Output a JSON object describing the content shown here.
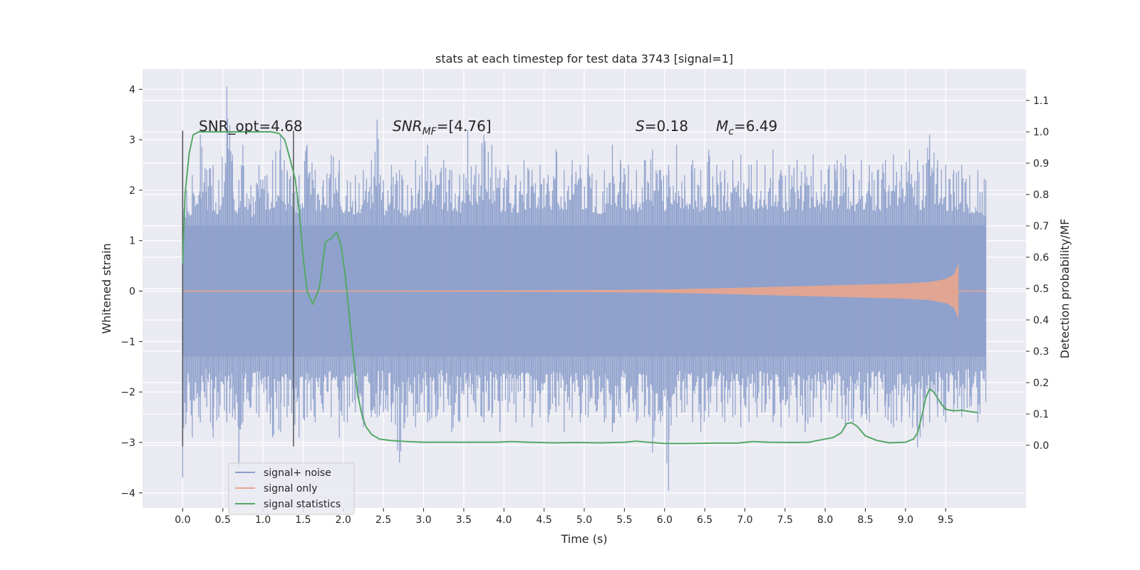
{
  "chart_data": {
    "type": "line",
    "title": "stats at each timestep for test data 3743 [signal=1]",
    "xlabel": "Time (s)",
    "ylabel": "Whitened strain",
    "y2label": "Detection probability/MF",
    "xlim": [
      -0.5,
      10.5
    ],
    "ylim": [
      -4.3,
      4.4
    ],
    "y2lim": [
      -0.2,
      1.2
    ],
    "x_ticks": [
      "0.0",
      "0.5",
      "1.0",
      "1.5",
      "2.0",
      "2.5",
      "3.0",
      "3.5",
      "4.0",
      "4.5",
      "5.0",
      "5.5",
      "6.0",
      "6.5",
      "7.0",
      "7.5",
      "8.0",
      "8.5",
      "9.0",
      "9.5"
    ],
    "y_ticks": [
      "4",
      "3",
      "2",
      "1",
      "0",
      "−1",
      "−2",
      "−3",
      "−4"
    ],
    "y2_ticks": [
      "1.1",
      "1.0",
      "0.9",
      "0.8",
      "0.7",
      "0.6",
      "0.5",
      "0.4",
      "0.3",
      "0.2",
      "0.1",
      "0.0"
    ],
    "grid": true,
    "legend_position": "bottom-left",
    "annotations": {
      "snr_opt": "SNR_opt=4.68",
      "snr_mf_base": "SNR",
      "snr_mf_sub": "MF",
      "snr_mf_rest": "=[4.76]",
      "s_var": "S",
      "s_rest": "=0.18",
      "mc_var": "M",
      "mc_sub": "c",
      "mc_rest": "=6.49"
    },
    "vertical_markers": [
      0.0,
      1.38
    ],
    "series": [
      {
        "name": "signal+ noise",
        "color": "#8da0cb",
        "x_range": [
          0.0,
          10.0
        ],
        "envelope_1sigma": 1.3,
        "peak_x": [
          0.0,
          0.05,
          0.12,
          0.22,
          0.3,
          0.38,
          0.45,
          0.55,
          0.62,
          0.7,
          0.75,
          0.85,
          0.95,
          1.05,
          1.12,
          1.22,
          1.3,
          1.38,
          1.45,
          1.55,
          1.65,
          1.75,
          1.85,
          1.95,
          2.05,
          2.15,
          2.25,
          2.35,
          2.42,
          2.5,
          2.6,
          2.7,
          2.8,
          2.9,
          2.95,
          3.05,
          3.15,
          3.25,
          3.35,
          3.45,
          3.55,
          3.65,
          3.75,
          3.85,
          3.95,
          4.05,
          4.15,
          4.25,
          4.35,
          4.45,
          4.55,
          4.65,
          4.75,
          4.85,
          4.95,
          5.05,
          5.15,
          5.25,
          5.35,
          5.45,
          5.55,
          5.65,
          5.75,
          5.85,
          5.95,
          6.05,
          6.15,
          6.25,
          6.35,
          6.45,
          6.55,
          6.65,
          6.75,
          6.85,
          6.95,
          7.05,
          7.15,
          7.25,
          7.35,
          7.45,
          7.55,
          7.65,
          7.75,
          7.85,
          7.95,
          8.05,
          8.15,
          8.25,
          8.35,
          8.45,
          8.55,
          8.65,
          8.75,
          8.85,
          8.95,
          9.05,
          9.15,
          9.22,
          9.3,
          9.4,
          9.5,
          9.6,
          9.7,
          9.8,
          9.9,
          10.0
        ],
        "peak_hi": [
          2.6,
          2.0,
          2.3,
          3.1,
          2.4,
          2.5,
          2.2,
          4.05,
          2.7,
          2.2,
          2.9,
          2.1,
          2.5,
          2.3,
          2.6,
          3.1,
          2.4,
          2.5,
          2.3,
          2.9,
          2.4,
          2.2,
          2.7,
          2.6,
          2.2,
          2.3,
          2.4,
          2.6,
          3.4,
          2.2,
          2.5,
          2.4,
          2.1,
          2.6,
          2.3,
          2.9,
          2.3,
          2.6,
          2.4,
          2.3,
          3.2,
          2.5,
          3.1,
          2.9,
          2.4,
          2.5,
          2.3,
          2.6,
          2.4,
          2.5,
          2.3,
          2.8,
          2.4,
          2.6,
          2.5,
          2.7,
          2.2,
          2.4,
          2.9,
          2.6,
          2.5,
          2.4,
          2.6,
          2.8,
          2.4,
          2.5,
          2.9,
          2.3,
          2.6,
          2.4,
          2.8,
          2.5,
          2.4,
          2.6,
          2.7,
          2.5,
          2.6,
          2.5,
          2.8,
          2.4,
          2.5,
          2.6,
          2.5,
          2.7,
          2.4,
          2.5,
          2.6,
          2.7,
          2.4,
          2.6,
          2.5,
          2.4,
          2.6,
          2.7,
          2.5,
          2.8,
          2.6,
          2.5,
          3.1,
          2.6,
          2.5,
          2.4,
          2.5,
          2.3,
          2.4,
          2.2
        ],
        "peak_lo": [
          -3.7,
          -2.4,
          -2.9,
          -2.6,
          -2.3,
          -2.9,
          -2.5,
          -2.6,
          -2.5,
          -3.5,
          -2.6,
          -2.3,
          -2.5,
          -2.4,
          -2.9,
          -2.8,
          -2.5,
          -2.6,
          -2.9,
          -2.5,
          -2.6,
          -2.4,
          -2.5,
          -2.9,
          -2.6,
          -2.4,
          -2.7,
          -2.5,
          -2.5,
          -2.4,
          -2.6,
          -3.4,
          -2.5,
          -2.7,
          -2.4,
          -2.6,
          -2.5,
          -2.4,
          -2.8,
          -2.6,
          -2.5,
          -2.4,
          -2.6,
          -2.5,
          -2.8,
          -2.4,
          -2.6,
          -2.5,
          -2.7,
          -2.5,
          -2.6,
          -2.4,
          -2.8,
          -2.5,
          -2.6,
          -2.5,
          -2.4,
          -2.6,
          -2.8,
          -2.5,
          -2.4,
          -2.6,
          -2.5,
          -3.2,
          -2.6,
          -3.95,
          -2.5,
          -2.4,
          -2.6,
          -2.8,
          -2.5,
          -2.4,
          -2.6,
          -2.5,
          -2.7,
          -2.6,
          -2.5,
          -2.4,
          -2.6,
          -2.7,
          -2.5,
          -2.6,
          -2.8,
          -2.5,
          -2.6,
          -2.4,
          -2.5,
          -2.7,
          -2.6,
          -2.5,
          -2.6,
          -2.4,
          -2.5,
          -2.7,
          -2.6,
          -2.5,
          -3.1,
          -2.7,
          -2.6,
          -2.5,
          -2.6,
          -2.4,
          -2.5,
          -2.3,
          -2.6,
          -2.2
        ]
      },
      {
        "name": "signal only",
        "color": "#e5a58f",
        "x": [
          0.0,
          1.0,
          2.0,
          3.0,
          4.0,
          5.0,
          5.5,
          6.0,
          6.5,
          7.0,
          7.5,
          8.0,
          8.5,
          9.0,
          9.3,
          9.5,
          9.6,
          9.66
        ],
        "amplitude": [
          0.01,
          0.01,
          0.01,
          0.012,
          0.015,
          0.02,
          0.025,
          0.035,
          0.05,
          0.07,
          0.09,
          0.11,
          0.13,
          0.15,
          0.18,
          0.24,
          0.32,
          0.55
        ]
      },
      {
        "name": "signal statistics",
        "color": "#55a868",
        "axis": "right",
        "x": [
          0.0,
          0.03,
          0.08,
          0.13,
          0.2,
          0.3,
          0.5,
          0.7,
          0.9,
          1.1,
          1.2,
          1.27,
          1.33,
          1.4,
          1.45,
          1.5,
          1.55,
          1.62,
          1.7,
          1.78,
          1.85,
          1.92,
          1.97,
          2.02,
          2.08,
          2.13,
          2.18,
          2.23,
          2.28,
          2.35,
          2.45,
          2.6,
          2.8,
          3.0,
          3.3,
          3.6,
          3.9,
          4.1,
          4.3,
          4.6,
          4.9,
          5.2,
          5.5,
          5.65,
          5.8,
          6.0,
          6.3,
          6.6,
          6.9,
          7.1,
          7.3,
          7.6,
          7.8,
          8.0,
          8.1,
          8.2,
          8.27,
          8.33,
          8.4,
          8.5,
          8.65,
          8.8,
          9.0,
          9.1,
          9.15,
          9.2,
          9.25,
          9.3,
          9.35,
          9.4,
          9.45,
          9.5,
          9.6,
          9.7,
          9.8,
          9.9
        ],
        "values": [
          0.58,
          0.8,
          0.93,
          0.99,
          1.0,
          1.0,
          1.0,
          1.0,
          1.0,
          1.0,
          0.995,
          0.975,
          0.92,
          0.85,
          0.75,
          0.6,
          0.49,
          0.45,
          0.5,
          0.65,
          0.66,
          0.68,
          0.64,
          0.55,
          0.4,
          0.27,
          0.16,
          0.1,
          0.06,
          0.035,
          0.02,
          0.015,
          0.012,
          0.01,
          0.01,
          0.01,
          0.01,
          0.012,
          0.01,
          0.008,
          0.009,
          0.008,
          0.01,
          0.013,
          0.01,
          0.006,
          0.006,
          0.007,
          0.007,
          0.012,
          0.01,
          0.009,
          0.01,
          0.02,
          0.025,
          0.04,
          0.07,
          0.072,
          0.06,
          0.03,
          0.015,
          0.008,
          0.01,
          0.02,
          0.04,
          0.09,
          0.15,
          0.18,
          0.17,
          0.15,
          0.13,
          0.115,
          0.11,
          0.112,
          0.108,
          0.104
        ]
      }
    ]
  }
}
